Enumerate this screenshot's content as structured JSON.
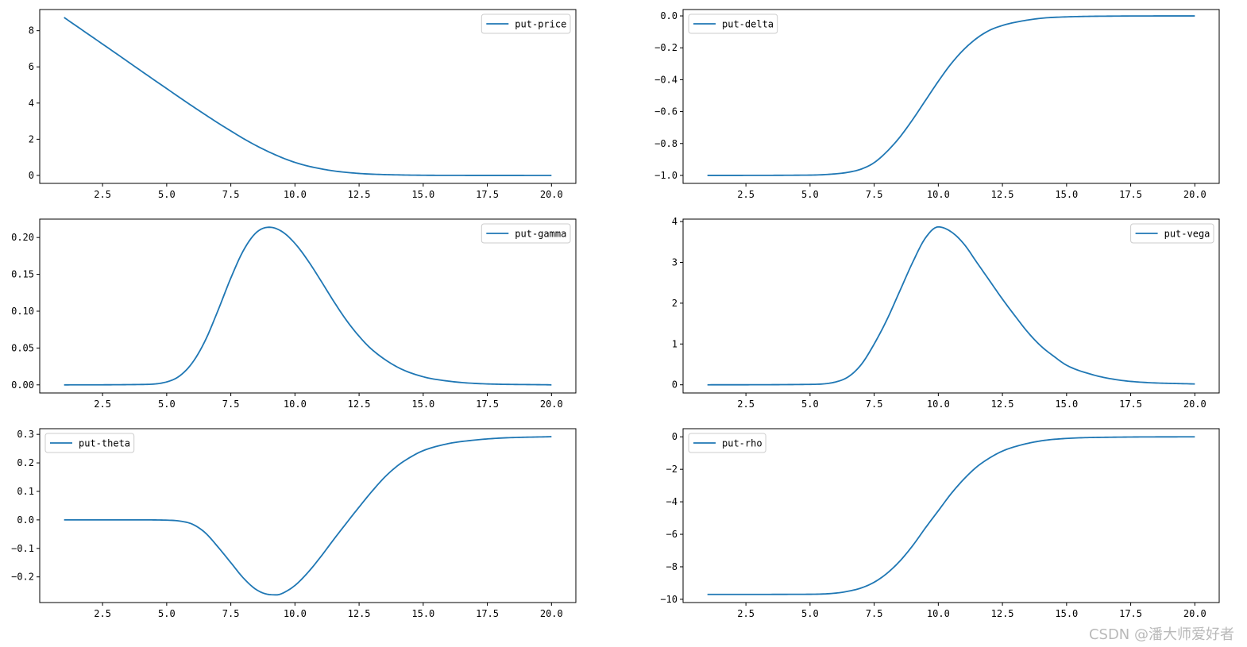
{
  "colors": {
    "line": "#1f77b4",
    "axes": "#000000",
    "legend_border": "#cccccc"
  },
  "watermark": "CSDN @潘大师爱好者",
  "chart_data": [
    {
      "type": "line",
      "series": [
        {
          "name": "put-price",
          "x_start": 1,
          "x_end": 20,
          "points": [
            [
              1,
              8.73
            ],
            [
              2,
              7.75
            ],
            [
              3,
              6.77
            ],
            [
              4,
              5.78
            ],
            [
              5,
              4.8
            ],
            [
              6,
              3.83
            ],
            [
              7,
              2.9
            ],
            [
              7.5,
              2.46
            ],
            [
              8,
              2.03
            ],
            [
              8.5,
              1.64
            ],
            [
              9,
              1.29
            ],
            [
              9.5,
              0.98
            ],
            [
              10,
              0.72
            ],
            [
              10.5,
              0.52
            ],
            [
              11,
              0.37
            ],
            [
              11.5,
              0.25
            ],
            [
              12,
              0.17
            ],
            [
              12.5,
              0.11
            ],
            [
              13,
              0.07
            ],
            [
              14,
              0.03
            ],
            [
              15,
              0.01
            ],
            [
              17,
              0.002
            ],
            [
              20,
              0.0
            ]
          ]
        }
      ],
      "xlim": [
        0.05,
        20.95
      ],
      "ylim": [
        -0.44,
        9.17
      ],
      "xticks": [
        2.5,
        5.0,
        7.5,
        10.0,
        12.5,
        15.0,
        17.5,
        20.0
      ],
      "xtick_labels": [
        "2.5",
        "5.0",
        "7.5",
        "10.0",
        "12.5",
        "15.0",
        "17.5",
        "20.0"
      ],
      "yticks": [
        0,
        2,
        4,
        6,
        8
      ],
      "ytick_labels": [
        "0",
        "2",
        "4",
        "6",
        "8"
      ],
      "legend": "upper right",
      "grid": false,
      "xlabel": "",
      "ylabel": ""
    },
    {
      "type": "line",
      "series": [
        {
          "name": "put-delta",
          "x_start": 1,
          "x_end": 20,
          "points": [
            [
              1,
              -1.0
            ],
            [
              5,
              -0.998
            ],
            [
              6,
              -0.99
            ],
            [
              6.5,
              -0.98
            ],
            [
              7,
              -0.96
            ],
            [
              7.5,
              -0.92
            ],
            [
              8,
              -0.85
            ],
            [
              8.5,
              -0.76
            ],
            [
              9,
              -0.65
            ],
            [
              9.5,
              -0.53
            ],
            [
              10,
              -0.41
            ],
            [
              10.5,
              -0.3
            ],
            [
              11,
              -0.21
            ],
            [
              11.5,
              -0.14
            ],
            [
              12,
              -0.09
            ],
            [
              12.5,
              -0.06
            ],
            [
              13,
              -0.04
            ],
            [
              14,
              -0.015
            ],
            [
              15,
              -0.006
            ],
            [
              17,
              -0.001
            ],
            [
              20,
              0.0
            ]
          ]
        }
      ],
      "xlim": [
        0.05,
        20.95
      ],
      "ylim": [
        -1.05,
        0.04
      ],
      "xticks": [
        2.5,
        5.0,
        7.5,
        10.0,
        12.5,
        15.0,
        17.5,
        20.0
      ],
      "xtick_labels": [
        "2.5",
        "5.0",
        "7.5",
        "10.0",
        "12.5",
        "15.0",
        "17.5",
        "20.0"
      ],
      "yticks": [
        -1.0,
        -0.8,
        -0.6,
        -0.4,
        -0.2,
        0.0
      ],
      "ytick_labels": [
        "−1.0",
        "−0.8",
        "−0.6",
        "−0.4",
        "−0.2",
        "0.0"
      ],
      "legend": "upper left",
      "grid": false,
      "xlabel": "",
      "ylabel": ""
    },
    {
      "type": "line",
      "series": [
        {
          "name": "put-gamma",
          "x_start": 1,
          "x_end": 20,
          "points": [
            [
              1,
              0.0
            ],
            [
              4,
              0.0005
            ],
            [
              5,
              0.004
            ],
            [
              5.5,
              0.012
            ],
            [
              6,
              0.03
            ],
            [
              6.5,
              0.06
            ],
            [
              7,
              0.101
            ],
            [
              7.5,
              0.145
            ],
            [
              8,
              0.183
            ],
            [
              8.5,
              0.207
            ],
            [
              9,
              0.214
            ],
            [
              9.5,
              0.208
            ],
            [
              10,
              0.192
            ],
            [
              10.5,
              0.169
            ],
            [
              11,
              0.142
            ],
            [
              11.5,
              0.114
            ],
            [
              12,
              0.088
            ],
            [
              12.5,
              0.066
            ],
            [
              13,
              0.048
            ],
            [
              14,
              0.024
            ],
            [
              15,
              0.011
            ],
            [
              16,
              0.005
            ],
            [
              17,
              0.002
            ],
            [
              20,
              0.0
            ]
          ]
        }
      ],
      "xlim": [
        0.05,
        20.95
      ],
      "ylim": [
        -0.011,
        0.225
      ],
      "xticks": [
        2.5,
        5.0,
        7.5,
        10.0,
        12.5,
        15.0,
        17.5,
        20.0
      ],
      "xtick_labels": [
        "2.5",
        "5.0",
        "7.5",
        "10.0",
        "12.5",
        "15.0",
        "17.5",
        "20.0"
      ],
      "yticks": [
        0.0,
        0.05,
        0.1,
        0.15,
        0.2
      ],
      "ytick_labels": [
        "0.00",
        "0.05",
        "0.10",
        "0.15",
        "0.20"
      ],
      "legend": "upper right",
      "grid": false,
      "xlabel": "",
      "ylabel": ""
    },
    {
      "type": "line",
      "series": [
        {
          "name": "put-vega",
          "x_start": 1,
          "x_end": 20,
          "points": [
            [
              1,
              0.0
            ],
            [
              5,
              0.01
            ],
            [
              6,
              0.07
            ],
            [
              6.5,
              0.2
            ],
            [
              7,
              0.5
            ],
            [
              7.5,
              1.0
            ],
            [
              8,
              1.6
            ],
            [
              8.5,
              2.3
            ],
            [
              9,
              3.0
            ],
            [
              9.5,
              3.6
            ],
            [
              10,
              3.87
            ],
            [
              10.5,
              3.75
            ],
            [
              11,
              3.45
            ],
            [
              11.5,
              3.0
            ],
            [
              12,
              2.55
            ],
            [
              12.5,
              2.1
            ],
            [
              13,
              1.68
            ],
            [
              13.5,
              1.28
            ],
            [
              14,
              0.95
            ],
            [
              14.5,
              0.7
            ],
            [
              15,
              0.48
            ],
            [
              16,
              0.25
            ],
            [
              17,
              0.12
            ],
            [
              18,
              0.06
            ],
            [
              20,
              0.02
            ]
          ]
        }
      ],
      "xlim": [
        0.05,
        20.95
      ],
      "ylim": [
        -0.2,
        4.06
      ],
      "xticks": [
        2.5,
        5.0,
        7.5,
        10.0,
        12.5,
        15.0,
        17.5,
        20.0
      ],
      "xtick_labels": [
        "2.5",
        "5.0",
        "7.5",
        "10.0",
        "12.5",
        "15.0",
        "17.5",
        "20.0"
      ],
      "yticks": [
        0,
        1,
        2,
        3,
        4
      ],
      "ytick_labels": [
        "0",
        "1",
        "2",
        "3",
        "4"
      ],
      "legend": "upper right",
      "grid": false,
      "xlabel": "",
      "ylabel": ""
    },
    {
      "type": "line",
      "series": [
        {
          "name": "put-theta",
          "x_start": 1,
          "x_end": 20,
          "points": [
            [
              1,
              0.0
            ],
            [
              4,
              0.0
            ],
            [
              5,
              -0.001
            ],
            [
              5.5,
              -0.004
            ],
            [
              6,
              -0.015
            ],
            [
              6.5,
              -0.045
            ],
            [
              7,
              -0.095
            ],
            [
              7.5,
              -0.15
            ],
            [
              8,
              -0.205
            ],
            [
              8.5,
              -0.245
            ],
            [
              9,
              -0.262
            ],
            [
              9.3,
              -0.263
            ],
            [
              9.5,
              -0.258
            ],
            [
              10,
              -0.23
            ],
            [
              10.5,
              -0.185
            ],
            [
              11,
              -0.13
            ],
            [
              11.5,
              -0.07
            ],
            [
              12,
              -0.012
            ],
            [
              12.5,
              0.045
            ],
            [
              13,
              0.1
            ],
            [
              13.5,
              0.15
            ],
            [
              14,
              0.19
            ],
            [
              14.5,
              0.22
            ],
            [
              15,
              0.243
            ],
            [
              16,
              0.268
            ],
            [
              17,
              0.28
            ],
            [
              18,
              0.287
            ],
            [
              20,
              0.292
            ]
          ]
        }
      ],
      "xlim": [
        0.05,
        20.95
      ],
      "ylim": [
        -0.29,
        0.32
      ],
      "xticks": [
        2.5,
        5.0,
        7.5,
        10.0,
        12.5,
        15.0,
        17.5,
        20.0
      ],
      "xtick_labels": [
        "2.5",
        "5.0",
        "7.5",
        "10.0",
        "12.5",
        "15.0",
        "17.5",
        "20.0"
      ],
      "yticks": [
        -0.2,
        -0.1,
        0.0,
        0.1,
        0.2,
        0.3
      ],
      "ytick_labels": [
        "−0.2",
        "−0.1",
        "0.0",
        "0.1",
        "0.2",
        "0.3"
      ],
      "legend": "upper left",
      "grid": false,
      "xlabel": "",
      "ylabel": ""
    },
    {
      "type": "line",
      "series": [
        {
          "name": "put-rho",
          "x_start": 1,
          "x_end": 20,
          "points": [
            [
              1,
              -9.7
            ],
            [
              5,
              -9.69
            ],
            [
              6,
              -9.62
            ],
            [
              6.5,
              -9.5
            ],
            [
              7,
              -9.3
            ],
            [
              7.5,
              -8.95
            ],
            [
              8,
              -8.4
            ],
            [
              8.5,
              -7.65
            ],
            [
              9,
              -6.7
            ],
            [
              9.5,
              -5.6
            ],
            [
              10,
              -4.55
            ],
            [
              10.5,
              -3.5
            ],
            [
              11,
              -2.6
            ],
            [
              11.5,
              -1.85
            ],
            [
              12,
              -1.3
            ],
            [
              12.5,
              -0.88
            ],
            [
              13,
              -0.6
            ],
            [
              14,
              -0.25
            ],
            [
              15,
              -0.1
            ],
            [
              17,
              -0.02
            ],
            [
              20,
              0.0
            ]
          ]
        }
      ],
      "xlim": [
        0.05,
        20.95
      ],
      "ylim": [
        -10.2,
        0.5
      ],
      "xticks": [
        2.5,
        5.0,
        7.5,
        10.0,
        12.5,
        15.0,
        17.5,
        20.0
      ],
      "xtick_labels": [
        "2.5",
        "5.0",
        "7.5",
        "10.0",
        "12.5",
        "15.0",
        "17.5",
        "20.0"
      ],
      "yticks": [
        -10,
        -8,
        -6,
        -4,
        -2,
        0
      ],
      "ytick_labels": [
        "−10",
        "−8",
        "−6",
        "−4",
        "−2",
        "0"
      ],
      "legend": "upper left",
      "grid": false,
      "xlabel": "",
      "ylabel": ""
    }
  ]
}
